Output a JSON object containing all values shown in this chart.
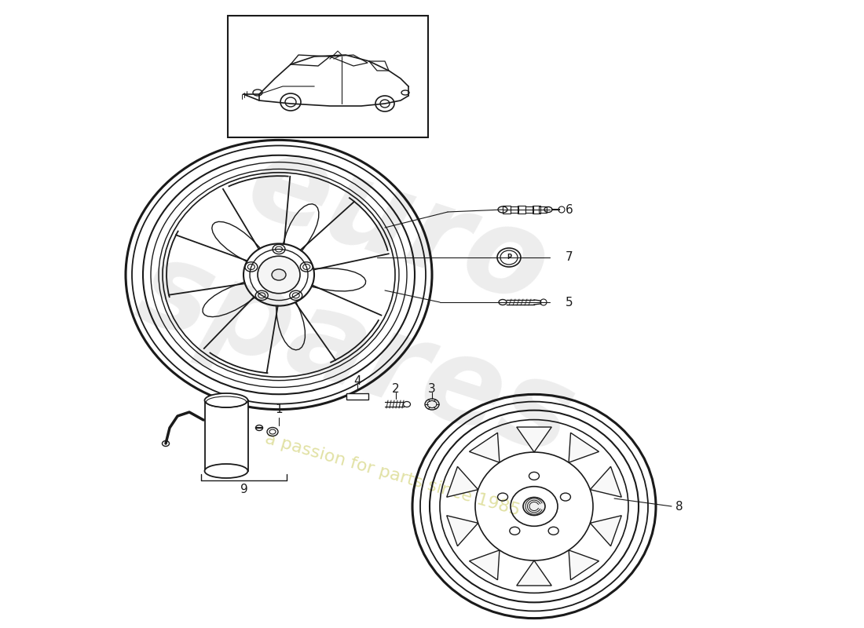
{
  "bg_color": "#ffffff",
  "line_color": "#1a1a1a",
  "watermark_color1": "#cccccc",
  "watermark_color2": "#dede9a",
  "watermark_text1": "euro\nspares",
  "watermark_text2": "a passion for parts since 1985",
  "part_numbers": [
    "1",
    "2",
    "3",
    "4",
    "5",
    "6",
    "7",
    "8",
    "9"
  ]
}
